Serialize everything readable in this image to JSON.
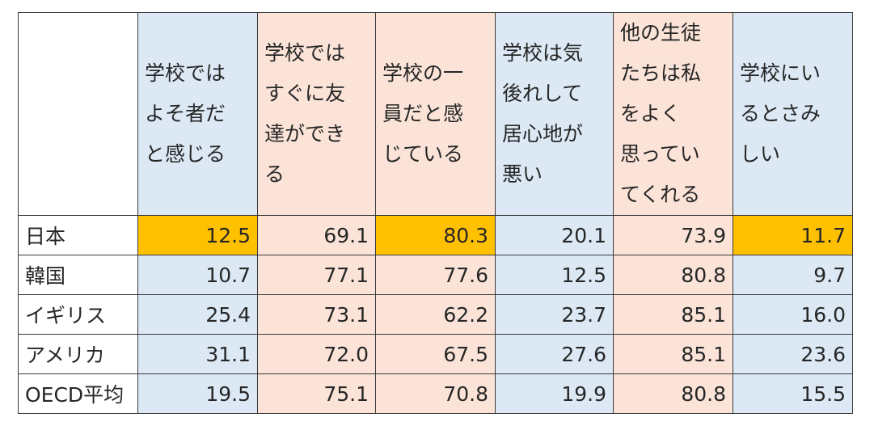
{
  "columns": [
    {
      "label": "学校ではよそ者だと感じる",
      "lines": [
        "学校では",
        "よそ者だ",
        "と感じる"
      ]
    },
    {
      "label": "学校ではすぐに友達ができる",
      "lines": [
        "学校では",
        "すぐに友",
        "達ができ",
        "る"
      ]
    },
    {
      "label": "学校の一員だと感じている",
      "lines": [
        "学校の一",
        "員だと感",
        "じている"
      ]
    },
    {
      "label": "学校は気後れして居心地が悪い",
      "lines": [
        "学校は気",
        "後れして",
        "居心地が",
        "悪い"
      ]
    },
    {
      "label": "他の生徒たちは私をよく思っていてくれる",
      "lines": [
        "他の生徒",
        "たちは私",
        "をよく",
        "思ってい",
        "てくれる"
      ]
    },
    {
      "label": "学校にいるとさみしい",
      "lines": [
        "学校にい",
        "るとさみ",
        "しい"
      ]
    }
  ],
  "rows": [
    {
      "label": "日本",
      "values": [
        "12.5",
        "69.1",
        "80.3",
        "20.1",
        "73.9",
        "11.7"
      ]
    },
    {
      "label": "韓国",
      "values": [
        "10.7",
        "77.1",
        "77.6",
        "12.5",
        "80.8",
        "9.7"
      ]
    },
    {
      "label": "イギリス",
      "values": [
        "25.4",
        "73.1",
        "62.2",
        "23.7",
        "85.1",
        "16.0"
      ]
    },
    {
      "label": "アメリカ",
      "values": [
        "31.1",
        "72.0",
        "67.5",
        "27.6",
        "85.1",
        "23.6"
      ]
    },
    {
      "label": "OECD平均",
      "values": [
        "19.5",
        "75.1",
        "70.8",
        "19.9",
        "80.8",
        "15.5"
      ]
    }
  ],
  "colors": {
    "header_blue": "#dce9f5",
    "header_pink": "#fbe3d8",
    "highlight": "#ffc000",
    "border": "#3a3a3a"
  }
}
